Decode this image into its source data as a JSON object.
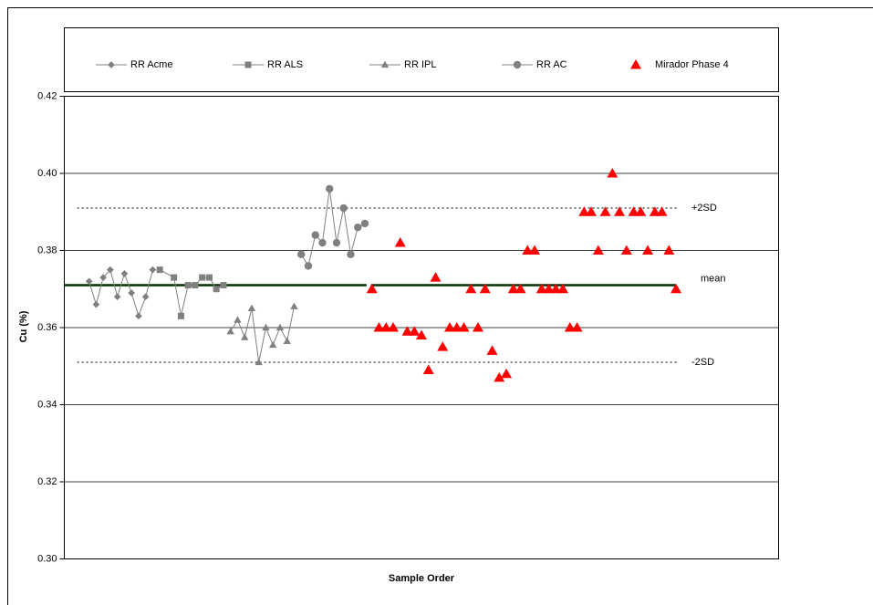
{
  "chart_data": {
    "type": "scatter",
    "x_label": "Sample Order",
    "y_label": "Cu (%)",
    "xlim": [
      -2.5,
      98.5
    ],
    "ylim": [
      0.3,
      0.42
    ],
    "yticks": [
      {
        "value": 0.3,
        "label": "0.30"
      },
      {
        "value": 0.32,
        "label": "0.32"
      },
      {
        "value": 0.34,
        "label": "0.34"
      },
      {
        "value": 0.36,
        "label": "0.36"
      },
      {
        "value": 0.38,
        "label": "0.38"
      },
      {
        "value": 0.4,
        "label": "0.40"
      },
      {
        "value": 0.42,
        "label": "0.42"
      }
    ],
    "grid": true,
    "reference_lines": [
      {
        "label": "+2SD",
        "value": 0.391,
        "style": "dotted",
        "color": "#000000"
      },
      {
        "label": "mean",
        "value": 0.371,
        "style": "solid",
        "color": "#003300"
      },
      {
        "label": "-2SD",
        "value": 0.351,
        "style": "dotted",
        "color": "#000000"
      }
    ],
    "series": [
      {
        "name": "RR Acme",
        "marker": "diamond",
        "color": "#808080",
        "line": true,
        "x": [
          1,
          2,
          3,
          4,
          5,
          6,
          7,
          8,
          9,
          10
        ],
        "values": [
          0.372,
          0.366,
          0.373,
          0.375,
          0.368,
          0.374,
          0.369,
          0.363,
          0.368,
          0.375
        ]
      },
      {
        "name": "RR ALS",
        "marker": "square",
        "color": "#808080",
        "line": true,
        "x": [
          11,
          13,
          14,
          15,
          16,
          17,
          18,
          19,
          20
        ],
        "values": [
          0.375,
          0.373,
          0.363,
          0.371,
          0.371,
          0.373,
          0.373,
          0.37,
          0.371
        ]
      },
      {
        "name": "RR IPL",
        "marker": "triangle",
        "color": "#808080",
        "line": true,
        "x": [
          21,
          22,
          23,
          24,
          25,
          26,
          27,
          28,
          29,
          30
        ],
        "values": [
          0.359,
          0.362,
          0.3575,
          0.365,
          0.351,
          0.36,
          0.3555,
          0.36,
          0.3565,
          0.3655
        ]
      },
      {
        "name": "RR AC",
        "marker": "circle",
        "color": "#808080",
        "line": true,
        "x": [
          31,
          32,
          33,
          34,
          35,
          36,
          37,
          38,
          39,
          40
        ],
        "values": [
          0.379,
          0.376,
          0.384,
          0.382,
          0.396,
          0.382,
          0.391,
          0.379,
          0.386,
          0.387
        ]
      },
      {
        "name": "Mirador Phase 4",
        "marker": "triangle",
        "color": "#ff0000",
        "line": false,
        "x": [
          41,
          42,
          43,
          44,
          45,
          46,
          47,
          48,
          49,
          50,
          51,
          52,
          53,
          54,
          55,
          56,
          57,
          58,
          59,
          60,
          61,
          62,
          63,
          64,
          65,
          66,
          67,
          68,
          69,
          70,
          71,
          72,
          73,
          74,
          75,
          76,
          77,
          78,
          79,
          80,
          81,
          82,
          83,
          84
        ],
        "values": [
          0.37,
          0.36,
          0.36,
          0.36,
          0.382,
          0.359,
          0.359,
          0.358,
          0.349,
          0.373,
          0.355,
          0.36,
          0.36,
          0.36,
          0.37,
          0.36,
          0.37,
          0.354,
          0.347,
          0.348,
          0.37,
          0.37,
          0.38,
          0.38,
          0.37,
          0.37,
          0.37,
          0.37,
          0.36,
          0.36,
          0.39,
          0.39,
          0.38,
          0.39,
          0.4,
          0.39,
          0.38,
          0.39,
          0.39,
          0.38,
          0.39,
          0.39,
          0.38,
          0.37
        ]
      }
    ]
  }
}
